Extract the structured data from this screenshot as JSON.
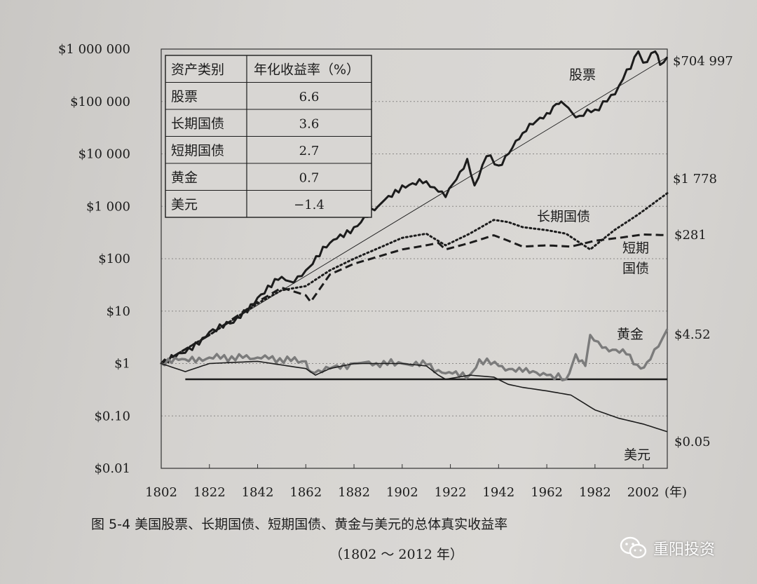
{
  "chart_data": {
    "type": "line",
    "title": "",
    "xlabel": "(年)",
    "ylabel": "",
    "y_scale": "log",
    "xlim": [
      1802,
      2012
    ],
    "ylim": [
      0.01,
      1000000
    ],
    "x_ticks": [
      1802,
      1822,
      1842,
      1862,
      1882,
      1902,
      1922,
      1942,
      1962,
      1982,
      2002
    ],
    "y_ticks": [
      {
        "value": 1000000,
        "label": "$1 000 000"
      },
      {
        "value": 100000,
        "label": "$100 000"
      },
      {
        "value": 10000,
        "label": "$10 000"
      },
      {
        "value": 1000,
        "label": "$1 000"
      },
      {
        "value": 100,
        "label": "$100"
      },
      {
        "value": 10,
        "label": "$10"
      },
      {
        "value": 1,
        "label": "$1"
      },
      {
        "value": 0.1,
        "label": "$0.10"
      },
      {
        "value": 0.01,
        "label": "$0.01"
      }
    ],
    "grid": "horizontal-dotted",
    "series": [
      {
        "name": "股票",
        "style": "solid-thick",
        "color": "#1c1c1c",
        "end_label": "$704 997",
        "x": [
          1802,
          1812,
          1822,
          1832,
          1842,
          1852,
          1857,
          1862,
          1872,
          1882,
          1892,
          1902,
          1912,
          1917,
          1920,
          1929,
          1932,
          1937,
          1942,
          1952,
          1962,
          1966,
          1968,
          1974,
          1982,
          1987,
          1992,
          2000,
          2002,
          2007,
          2009,
          2012
        ],
        "y": [
          1,
          1.6,
          4,
          6,
          18,
          45,
          35,
          60,
          200,
          400,
          1000,
          2500,
          3000,
          1900,
          1500,
          8000,
          2500,
          9000,
          6000,
          25000,
          60000,
          90000,
          100000,
          50000,
          70000,
          100000,
          200000,
          900000,
          550000,
          900000,
          500000,
          704997
        ]
      },
      {
        "name": "长期国债",
        "style": "dotted",
        "color": "#1c1c1c",
        "end_label": "$1 778",
        "x": [
          1802,
          1822,
          1842,
          1852,
          1862,
          1872,
          1882,
          1902,
          1912,
          1920,
          1930,
          1940,
          1946,
          1952,
          1962,
          1970,
          1980,
          1990,
          2000,
          2012
        ],
        "y": [
          1,
          3.5,
          14,
          25,
          30,
          60,
          100,
          250,
          300,
          180,
          300,
          550,
          500,
          400,
          350,
          300,
          150,
          350,
          700,
          1778
        ]
      },
      {
        "name": "短期国债",
        "style": "dashed",
        "color": "#1c1c1c",
        "end_label": "$281",
        "x": [
          1802,
          1822,
          1842,
          1852,
          1862,
          1864,
          1872,
          1882,
          1902,
          1912,
          1917,
          1920,
          1930,
          1940,
          1946,
          1952,
          1962,
          1972,
          1982,
          1992,
          2002,
          2012
        ],
        "y": [
          1,
          3.5,
          15,
          28,
          20,
          15,
          50,
          80,
          150,
          180,
          200,
          150,
          200,
          280,
          220,
          170,
          180,
          170,
          220,
          250,
          290,
          281
        ]
      },
      {
        "name": "黄金",
        "style": "solid-gray",
        "color": "#7b7b7b",
        "end_label": "$4.52",
        "x": [
          1802,
          1812,
          1822,
          1842,
          1862,
          1864,
          1872,
          1882,
          1902,
          1912,
          1917,
          1920,
          1930,
          1934,
          1942,
          1952,
          1962,
          1970,
          1974,
          1978,
          1980,
          1985,
          1995,
          2001,
          2005,
          2010,
          2012
        ],
        "y": [
          1,
          1.2,
          1.3,
          1.3,
          1.1,
          0.7,
          0.8,
          1.0,
          1.0,
          0.95,
          0.75,
          0.65,
          0.6,
          1.2,
          0.9,
          0.7,
          0.6,
          0.5,
          1.5,
          0.9,
          3.5,
          2.0,
          1.5,
          0.8,
          1.2,
          3.0,
          4.52
        ]
      },
      {
        "name": "美元",
        "style": "solid-thin",
        "color": "#1c1c1c",
        "end_label": "$0.05",
        "x": [
          1802,
          1812,
          1822,
          1842,
          1862,
          1866,
          1872,
          1882,
          1902,
          1912,
          1917,
          1920,
          1930,
          1940,
          1946,
          1952,
          1962,
          1972,
          1982,
          1992,
          2002,
          2012
        ],
        "y": [
          1,
          0.7,
          1.0,
          1.1,
          0.8,
          0.6,
          0.8,
          1.0,
          1.0,
          0.9,
          0.6,
          0.5,
          0.6,
          0.55,
          0.4,
          0.35,
          0.3,
          0.25,
          0.13,
          0.09,
          0.07,
          0.05
        ]
      }
    ],
    "reference_lines": [
      {
        "kind": "trend",
        "x": [
          1802,
          2012
        ],
        "y": [
          1,
          704997
        ]
      },
      {
        "kind": "horizontal",
        "x": [
          1812,
          2012
        ],
        "y": [
          0.5,
          0.5
        ]
      }
    ],
    "table": {
      "headers": [
        "资产类别",
        "年化收益率（%）"
      ],
      "rows": [
        [
          "股票",
          "6.6"
        ],
        [
          "长期国债",
          "3.6"
        ],
        [
          "短期国债",
          "2.7"
        ],
        [
          "黄金",
          "0.7"
        ],
        [
          "美元",
          "−1.4"
        ]
      ]
    },
    "inline_labels": {
      "stocks": "股票",
      "bonds": "长期国债",
      "bills_1": "短期",
      "bills_2": "国债",
      "gold": "黄金",
      "dollar": "美元"
    }
  },
  "caption": {
    "main": "图 5-4   美国股票、长期国债、短期国债、黄金与美元的总体真实收益率",
    "sub": "（1802 ～ 2012 年）"
  },
  "watermark": {
    "text": "重阳投资",
    "icon": "wechat-icon"
  }
}
